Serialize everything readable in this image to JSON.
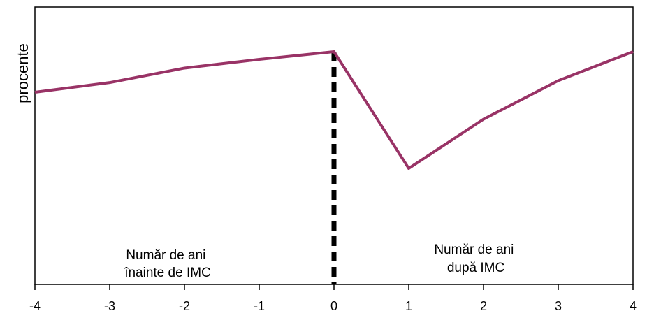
{
  "chart_data": {
    "type": "line",
    "ylabel": "procente",
    "xlabel": "",
    "x": [
      -4,
      -3,
      -2,
      -1,
      0,
      1,
      2,
      3,
      4
    ],
    "xlim": [
      -4,
      4
    ],
    "ylim": [
      0,
      100
    ],
    "grid": false,
    "tick_labels": [
      "-4",
      "-3",
      "-2",
      "-1",
      "0",
      "1",
      "2",
      "3",
      "4"
    ],
    "series": [
      {
        "values": [
          79,
          84,
          91.5,
          96,
          100,
          39.5,
          65,
          85,
          100
        ],
        "color": "#993366"
      }
    ],
    "reference_line": {
      "x": 0,
      "style": "dashed",
      "color": "#000000"
    },
    "annotations": {
      "left": [
        "Număr de ani",
        "înainte de IMC"
      ],
      "right": [
        "Număr de ani",
        "după IMC"
      ]
    }
  }
}
